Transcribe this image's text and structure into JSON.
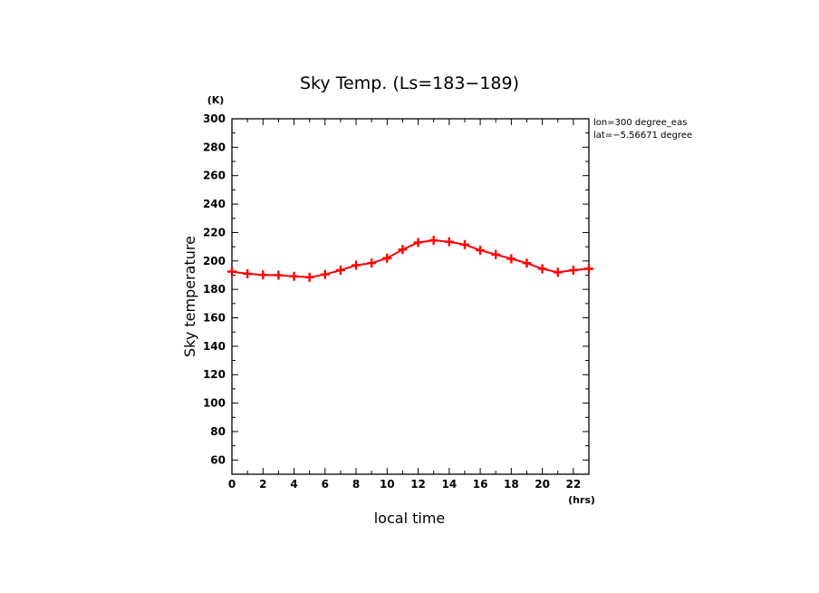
{
  "chart_data": {
    "type": "line",
    "title": "Sky Temp. (Ls=183−189)",
    "xlabel": "local time",
    "ylabel": "Sky temperature",
    "x_unit": "(hrs)",
    "y_unit": "(K)",
    "xlim": [
      0,
      23
    ],
    "ylim": [
      50,
      300
    ],
    "x_ticks": [
      0,
      2,
      4,
      6,
      8,
      10,
      12,
      14,
      16,
      18,
      20,
      22
    ],
    "y_ticks": [
      60,
      80,
      100,
      120,
      140,
      160,
      180,
      200,
      220,
      240,
      260,
      280,
      300
    ],
    "annotations": [
      "lon=300 degree_eas",
      "lat=−5.56671 degree"
    ],
    "grid": false,
    "series": [
      {
        "color": "#ff0000",
        "marker": "plus",
        "x": [
          0,
          1,
          2,
          3,
          4,
          5,
          6,
          7,
          8,
          9,
          10,
          11,
          12,
          13,
          14,
          15,
          16,
          17,
          18,
          19,
          20,
          21,
          22,
          23
        ],
        "values": [
          192.5,
          191,
          190.2,
          190,
          189.2,
          188.5,
          190.5,
          193.5,
          197,
          198.5,
          202,
          208,
          213,
          214.5,
          213.5,
          211.5,
          207.5,
          204.5,
          201.5,
          198.5,
          194.5,
          192,
          193.5,
          194.5
        ]
      }
    ]
  }
}
